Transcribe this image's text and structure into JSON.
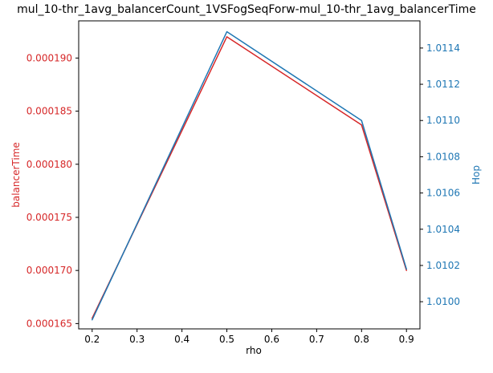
{
  "chart_data": {
    "type": "line",
    "title": "mul_10-thr_1avg_balancerCount_1VSFogSeqForw-mul_10-thr_1avg_balancerTime",
    "xlabel": "rho",
    "x": [
      0.2,
      0.5,
      0.8,
      0.9
    ],
    "x_ticks": [
      "0.2",
      "0.3",
      "0.4",
      "0.5",
      "0.6",
      "0.7",
      "0.8",
      "0.9"
    ],
    "xlim": [
      0.17,
      0.93
    ],
    "left_axis": {
      "label": "balancerTime",
      "color": "#d62728",
      "ylim": [
        0.0001645,
        0.0001935
      ],
      "ticks": [
        "0.000165",
        "0.000170",
        "0.000175",
        "0.000180",
        "0.000185",
        "0.000190"
      ]
    },
    "right_axis": {
      "label": "Hop",
      "color": "#1f77b4",
      "ylim": [
        1.00985,
        1.01155
      ],
      "ticks": [
        "1.0100",
        "1.0102",
        "1.0104",
        "1.0106",
        "1.0108",
        "1.0110",
        "1.0112",
        "1.0114"
      ]
    },
    "series": [
      {
        "axis": "left",
        "color": "#d62728",
        "values": [
          0.0001655,
          0.000192,
          0.0001837,
          0.00017
        ]
      },
      {
        "axis": "right",
        "color": "#1f77b4",
        "values": [
          1.0099,
          1.01149,
          1.011,
          1.01018
        ]
      }
    ],
    "grid": false
  }
}
